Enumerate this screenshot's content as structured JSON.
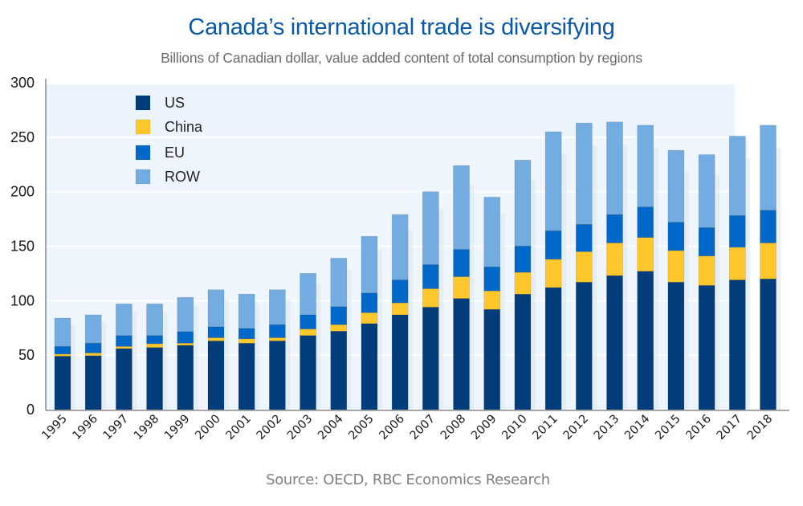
{
  "header": {
    "title": "Canada’s international trade is diversifying",
    "subtitle": "Billions of Canadian dollar, value added content of total consumption by regions"
  },
  "footer": {
    "source": "Source: OECD, RBC Economics Research"
  },
  "chart_data": {
    "type": "bar",
    "stacked": true,
    "title": "Canada’s international trade is diversifying",
    "subtitle": "Billions of Canadian dollar, value added content of total consumption by regions",
    "xlabel": "",
    "ylabel": "",
    "ylim": [
      0,
      300
    ],
    "yticks": [
      0,
      50,
      100,
      150,
      200,
      250,
      300
    ],
    "grid": true,
    "legend_position": "top-left",
    "categories": [
      "1995",
      "1996",
      "1997",
      "1998",
      "1999",
      "2000",
      "2001",
      "2002",
      "2003",
      "2004",
      "2005",
      "2006",
      "2007",
      "2008",
      "2009",
      "2010",
      "2011",
      "2012",
      "2013",
      "2014",
      "2015",
      "2016",
      "2017",
      "2018"
    ],
    "series": [
      {
        "name": "US",
        "color": "#003D7A",
        "values": [
          49,
          49.5,
          56,
          57,
          59,
          63,
          61,
          63,
          68,
          72,
          79,
          87,
          94,
          102,
          92,
          106,
          112,
          117,
          123,
          127,
          117,
          114,
          119,
          120
        ]
      },
      {
        "name": "China",
        "color": "#FFC72C",
        "values": [
          2,
          2.5,
          2,
          3.5,
          2,
          3,
          4,
          3,
          6,
          6,
          10,
          11,
          17,
          20,
          17,
          20,
          26,
          28,
          30,
          31,
          29,
          27,
          30,
          33
        ]
      },
      {
        "name": "EU",
        "color": "#0068C8",
        "values": [
          7,
          9,
          10,
          7.5,
          10.5,
          10,
          9.5,
          12,
          13,
          16.5,
          18,
          21,
          22,
          25,
          22,
          24,
          26,
          25,
          26,
          28,
          26,
          26,
          29,
          30
        ]
      },
      {
        "name": "ROW",
        "color": "#72ACE0",
        "values": [
          26,
          26,
          29,
          29,
          31.5,
          34,
          31.5,
          32,
          38,
          44.5,
          52,
          60,
          67,
          77,
          64,
          79,
          91,
          93,
          85,
          75,
          66,
          67,
          73,
          78
        ]
      }
    ],
    "source": "Source: OECD, RBC Economics Research"
  }
}
